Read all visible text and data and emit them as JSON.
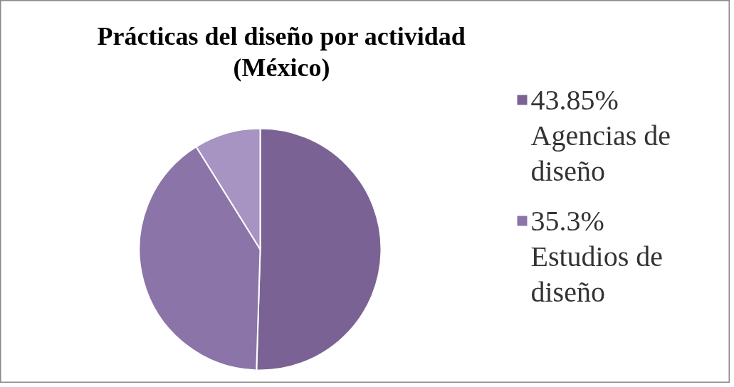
{
  "chart_data": {
    "type": "pie",
    "title": "Prácticas del diseño por actividad (México)",
    "categories": [
      "Agencias de diseño",
      "Estudios de diseño",
      null
    ],
    "values": [
      43.85,
      35.3,
      7.7
    ],
    "value_labels": [
      "43.85%",
      "35.3%",
      null
    ],
    "colors": [
      "#7a6394",
      "#8b74a8",
      "#a894c2"
    ],
    "legend": "right"
  }
}
